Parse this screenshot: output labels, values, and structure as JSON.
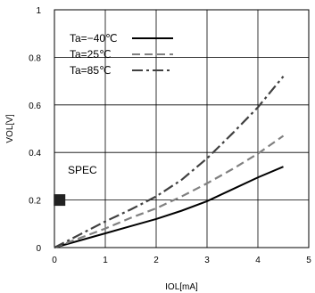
{
  "chart_data": {
    "type": "line",
    "xlabel": "IOL[mA]",
    "ylabel": "VOL[V]",
    "xlim": [
      0,
      5
    ],
    "ylim": [
      0,
      1
    ],
    "xticks": [
      "0",
      "1",
      "2",
      "3",
      "4",
      "5"
    ],
    "yticks": [
      "0",
      "0.2",
      "0.4",
      "0.6",
      "0.8",
      "1"
    ],
    "grid": true,
    "legend_position": "top-left",
    "series": [
      {
        "name": "Ta=−40℃",
        "style": "solid",
        "color": "#000000",
        "x": [
          0,
          0.5,
          1,
          1.5,
          2,
          2.5,
          3,
          3.5,
          4,
          4.5
        ],
        "y": [
          0,
          0.03,
          0.06,
          0.09,
          0.12,
          0.155,
          0.195,
          0.245,
          0.295,
          0.34
        ]
      },
      {
        "name": "Ta=25℃",
        "style": "dashed",
        "color": "#808080",
        "x": [
          0,
          0.5,
          1,
          1.5,
          2,
          2.5,
          3,
          3.5,
          4,
          4.5
        ],
        "y": [
          0,
          0.04,
          0.08,
          0.125,
          0.165,
          0.215,
          0.27,
          0.33,
          0.395,
          0.47
        ]
      },
      {
        "name": "Ta=85℃",
        "style": "dashdot",
        "color": "#404040",
        "x": [
          0,
          0.5,
          1,
          1.5,
          2,
          2.5,
          3,
          3.5,
          4,
          4.5
        ],
        "y": [
          0,
          0.055,
          0.11,
          0.16,
          0.215,
          0.285,
          0.375,
          0.48,
          0.59,
          0.72
        ]
      }
    ],
    "annotations": [
      {
        "text": "SPEC",
        "marker": "square",
        "x": 0.1,
        "y": 0.2
      }
    ]
  }
}
